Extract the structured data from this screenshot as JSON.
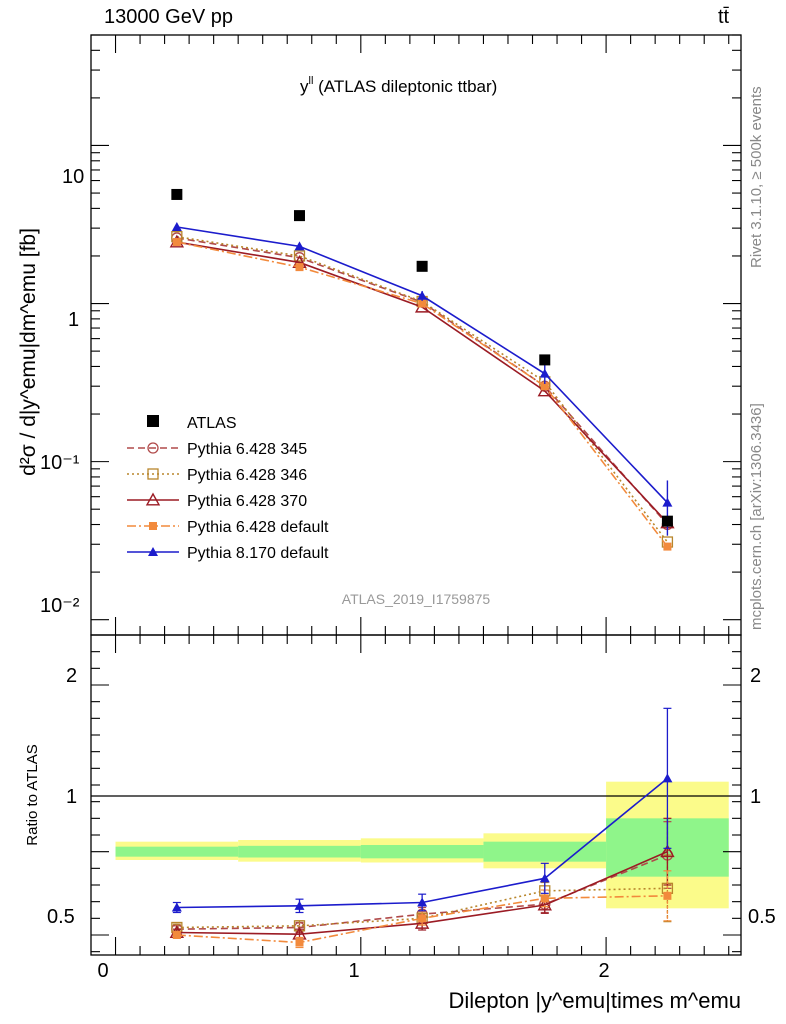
{
  "header": {
    "left": "13000 GeV pp",
    "right": "tt̄"
  },
  "side_labels": {
    "rivet": "Rivet 3.1.10, ≥ 500k events",
    "mcplots": "mcplots.cern.ch [arXiv:1306.3436]"
  },
  "main_plot": {
    "title_main": "y",
    "title_sup": "ll",
    "title_rest": " (ATLAS dileptonic ttbar)",
    "ylabel": "d²σ / d|y^emu|dm^emu [fb]",
    "watermark": "ATLAS_2019_I1759875",
    "ytick_labels": [
      "10",
      "1",
      "10⁻¹",
      "10⁻²"
    ]
  },
  "ratio_plot": {
    "ylabel": "Ratio to ATLAS",
    "ytick_labels": [
      "2",
      "1",
      "0.5"
    ]
  },
  "xaxis": {
    "label": "Dilepton |y^emu|times m^emu",
    "tick_labels": [
      "0",
      "1",
      "2"
    ]
  },
  "chart_data": {
    "type": "line",
    "x": [
      0.25,
      0.75,
      1.25,
      1.75,
      2.25
    ],
    "bin_edges": [
      0.0,
      0.5,
      1.0,
      1.5,
      2.0,
      2.5
    ],
    "main": {
      "yscale": "log",
      "ylim": [
        0.008,
        50
      ],
      "xlim": [
        -0.1,
        2.55
      ]
    },
    "ratio": {
      "ylim": [
        0.38,
        2.3
      ],
      "xlim": [
        -0.1,
        2.55
      ]
    },
    "data": {
      "name": "ATLAS",
      "values": [
        4.9,
        3.6,
        1.72,
        0.44,
        0.042
      ],
      "band_inner": [
        [
          0.97,
          1.03
        ],
        [
          0.965,
          1.035
        ],
        [
          0.96,
          1.04
        ],
        [
          0.94,
          1.06
        ],
        [
          0.85,
          1.2
        ]
      ],
      "band_outer": [
        [
          0.95,
          1.06
        ],
        [
          0.94,
          1.07
        ],
        [
          0.935,
          1.08
        ],
        [
          0.9,
          1.11
        ],
        [
          0.66,
          1.42
        ]
      ]
    },
    "series": [
      {
        "name": "Pythia 6.428 345",
        "color": "#b04a4a",
        "dash": "7,4",
        "marker": "open-circle",
        "values": [
          2.6,
          1.95,
          1.02,
          0.3,
          0.04
        ],
        "ratio": [
          0.535,
          0.545,
          0.625,
          0.685,
          0.98
        ],
        "ratio_err": [
          0.02,
          0.03,
          0.04,
          0.05,
          0.2
        ]
      },
      {
        "name": "Pythia 6.428 346",
        "color": "#b8862c",
        "dash": "2,3",
        "marker": "open-square",
        "values": [
          2.65,
          2.0,
          1.03,
          0.32,
          0.031
        ],
        "ratio": [
          0.545,
          0.555,
          0.6,
          0.765,
          0.78
        ],
        "ratio_err": [
          0.02,
          0.03,
          0.04,
          0.05,
          0.2
        ]
      },
      {
        "name": "Pythia 6.428 370",
        "color": "#9b1b24",
        "dash": "",
        "marker": "open-triangle",
        "values": [
          2.45,
          1.82,
          0.95,
          0.28,
          0.041
        ],
        "ratio": [
          0.515,
          0.505,
          0.57,
          0.68,
          1.0
        ],
        "ratio_err": [
          0.02,
          0.03,
          0.04,
          0.05,
          0.2
        ]
      },
      {
        "name": "Pythia 6.428 default",
        "color": "#f28a3c",
        "dash": "9,3,2,3",
        "marker": "filled-square",
        "values": [
          2.45,
          1.7,
          1.0,
          0.3,
          0.029
        ],
        "ratio": [
          0.5,
          0.455,
          0.6,
          0.72,
          0.735
        ],
        "ratio_err": [
          0.02,
          0.03,
          0.04,
          0.05,
          0.15
        ]
      },
      {
        "name": "Pythia 8.170 default",
        "color": "#1c1ccc",
        "dash": "",
        "marker": "filled-triangle",
        "values": [
          3.05,
          2.3,
          1.12,
          0.36,
          0.055
        ],
        "ratio": [
          0.665,
          0.675,
          0.695,
          0.84,
          1.44
        ],
        "ratio_err": [
          0.03,
          0.04,
          0.05,
          0.09,
          0.42
        ],
        "main_err": [
          0.1,
          0.08,
          0.08,
          0.05,
          0.021
        ]
      }
    ]
  }
}
